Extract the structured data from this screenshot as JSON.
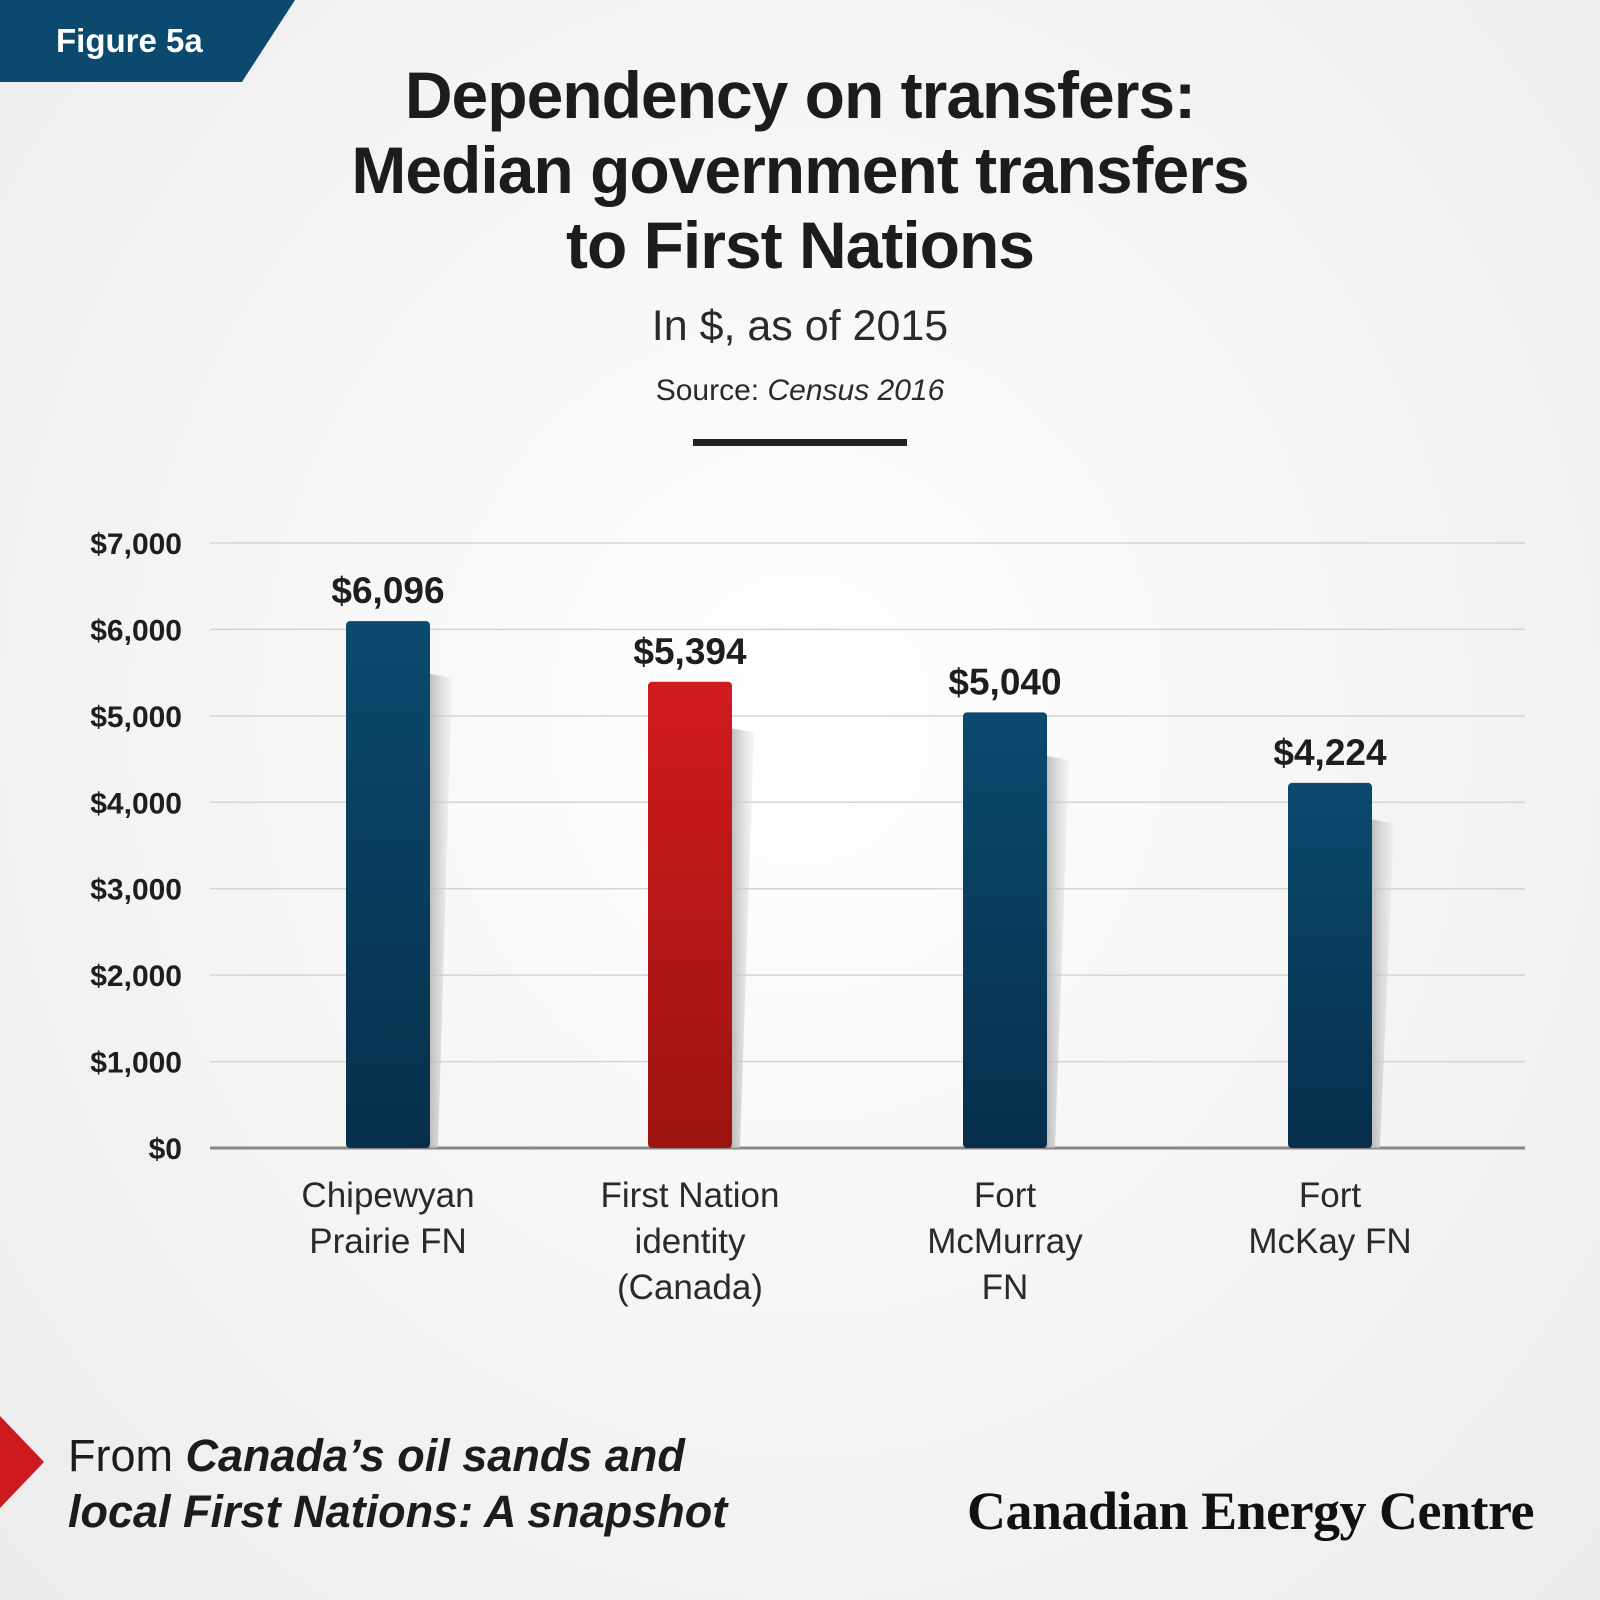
{
  "figure_label": "Figure 5a",
  "title_lines": [
    "Dependency on transfers:",
    "Median government transfers",
    "to First Nations"
  ],
  "subtitle": "In $, as of 2015",
  "source_prefix": "Source:",
  "source_value": "Census 2016",
  "colors": {
    "navy": "#0b4a6e",
    "red": "#cc1a1e",
    "grid": "#d4d4d4",
    "axis": "#888888"
  },
  "chart_data": {
    "type": "bar",
    "categories": [
      [
        "Chipewyan",
        "Prairie FN"
      ],
      [
        "First Nation",
        "identity",
        "(Canada)"
      ],
      [
        "Fort",
        "McMurray",
        "FN"
      ],
      [
        "Fort",
        "McKay FN"
      ]
    ],
    "values": [
      6096,
      5394,
      5040,
      4224
    ],
    "value_labels": [
      "$6,096",
      "$5,394",
      "$5,040",
      "$4,224"
    ],
    "bar_colors": [
      "navy",
      "red",
      "navy",
      "navy"
    ],
    "ylim": [
      0,
      7000
    ],
    "yticks": [
      0,
      1000,
      2000,
      3000,
      4000,
      5000,
      6000,
      7000
    ],
    "ytick_labels": [
      "$0",
      "$1,000",
      "$2,000",
      "$3,000",
      "$4,000",
      "$5,000",
      "$6,000",
      "$7,000"
    ],
    "grid": true
  },
  "footer": {
    "from_prefix": "From",
    "publication_line1": "Canada’s oil sands and",
    "publication_line2": "local First Nations: A snapshot",
    "brand": "Canadian Energy Centre"
  }
}
